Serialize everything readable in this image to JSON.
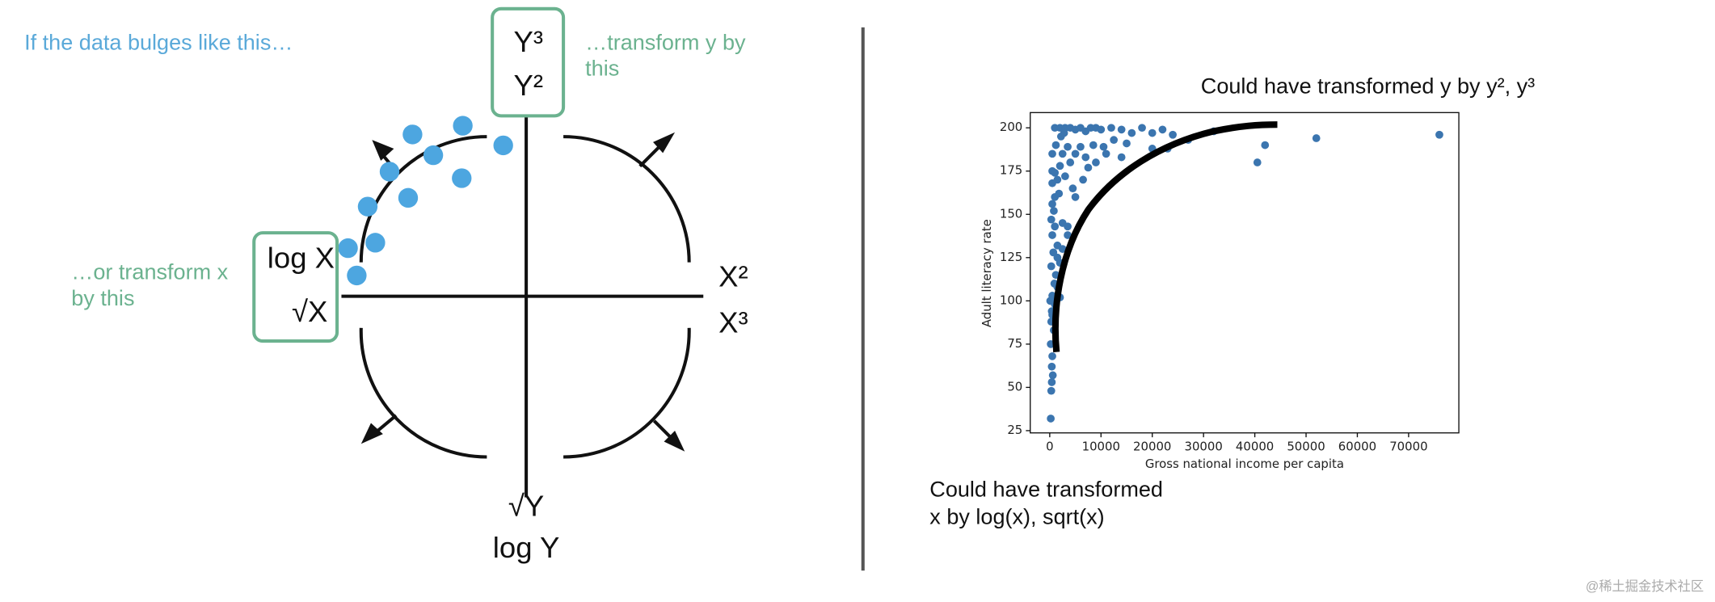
{
  "header": {
    "prompt": "If the data bulges like this…"
  },
  "diagram": {
    "y_box": [
      "Y³",
      "Y²"
    ],
    "y_note": [
      "…transform y by",
      "this"
    ],
    "x_box": [
      "log X",
      "√X"
    ],
    "x_note": [
      "…or transform x",
      "by this"
    ],
    "x_right": [
      "X²",
      "X³"
    ],
    "y_bottom": [
      "√Y",
      "log Y"
    ]
  },
  "chart_data": {
    "type": "scatter",
    "title": "Could have transformed y by y², y³",
    "x_label": "Gross national income per capita",
    "y_label": "Adult literacy rate",
    "color": "#3b75af",
    "x": [
      1000,
      2000,
      3000,
      4000,
      5000,
      6000,
      7000,
      8000,
      9000,
      10000,
      12000,
      14000,
      16000,
      18000,
      20000,
      22000,
      24000,
      27000,
      32000,
      42000,
      40500,
      52000,
      76000,
      12500,
      15000,
      10500,
      8500,
      6000,
      3500,
      5000,
      7000,
      9000,
      4000,
      2500,
      2000,
      500,
      1000,
      1500,
      3000,
      4500,
      6500,
      7500,
      20000,
      23000,
      14000,
      11000,
      500,
      1000,
      500,
      800,
      300,
      1000,
      500,
      2500,
      1500,
      3500,
      2000,
      700,
      300,
      1200,
      1500,
      500,
      2000,
      1000,
      500,
      300,
      800,
      200,
      500,
      400,
      600,
      400,
      300,
      200,
      1500,
      2500,
      3500,
      5000,
      900,
      100,
      400,
      1800,
      2200,
      2800,
      1200,
      500
    ],
    "values": [
      200,
      200,
      200,
      200,
      199,
      200,
      198,
      200,
      200,
      199,
      200,
      199,
      197,
      200,
      197,
      199,
      196,
      193,
      198,
      190,
      180,
      194,
      196,
      193,
      191,
      189,
      190,
      189,
      189,
      185,
      183,
      180,
      180,
      185,
      178,
      175,
      174,
      170,
      172,
      165,
      170,
      177,
      188,
      188,
      183,
      185,
      168,
      160,
      156,
      152,
      147,
      143,
      138,
      145,
      132,
      143,
      122,
      128,
      120,
      115,
      108,
      103,
      102,
      98,
      92,
      88,
      83,
      75,
      68,
      62,
      57,
      53,
      48,
      32,
      125,
      130,
      138,
      160,
      110,
      100,
      94,
      162,
      195,
      197,
      190,
      185
    ],
    "xlim": [
      -3800,
      79800
    ],
    "ylim": [
      23.7,
      208.8
    ],
    "xticks": [
      0,
      10000,
      20000,
      30000,
      40000,
      50000,
      60000,
      70000
    ],
    "yticks": [
      25,
      50,
      75,
      100,
      125,
      150,
      175,
      200
    ]
  },
  "caption": [
    "Could have transformed",
    "x by log(x), sqrt(x)"
  ],
  "watermark": "@稀土掘金技术社区"
}
